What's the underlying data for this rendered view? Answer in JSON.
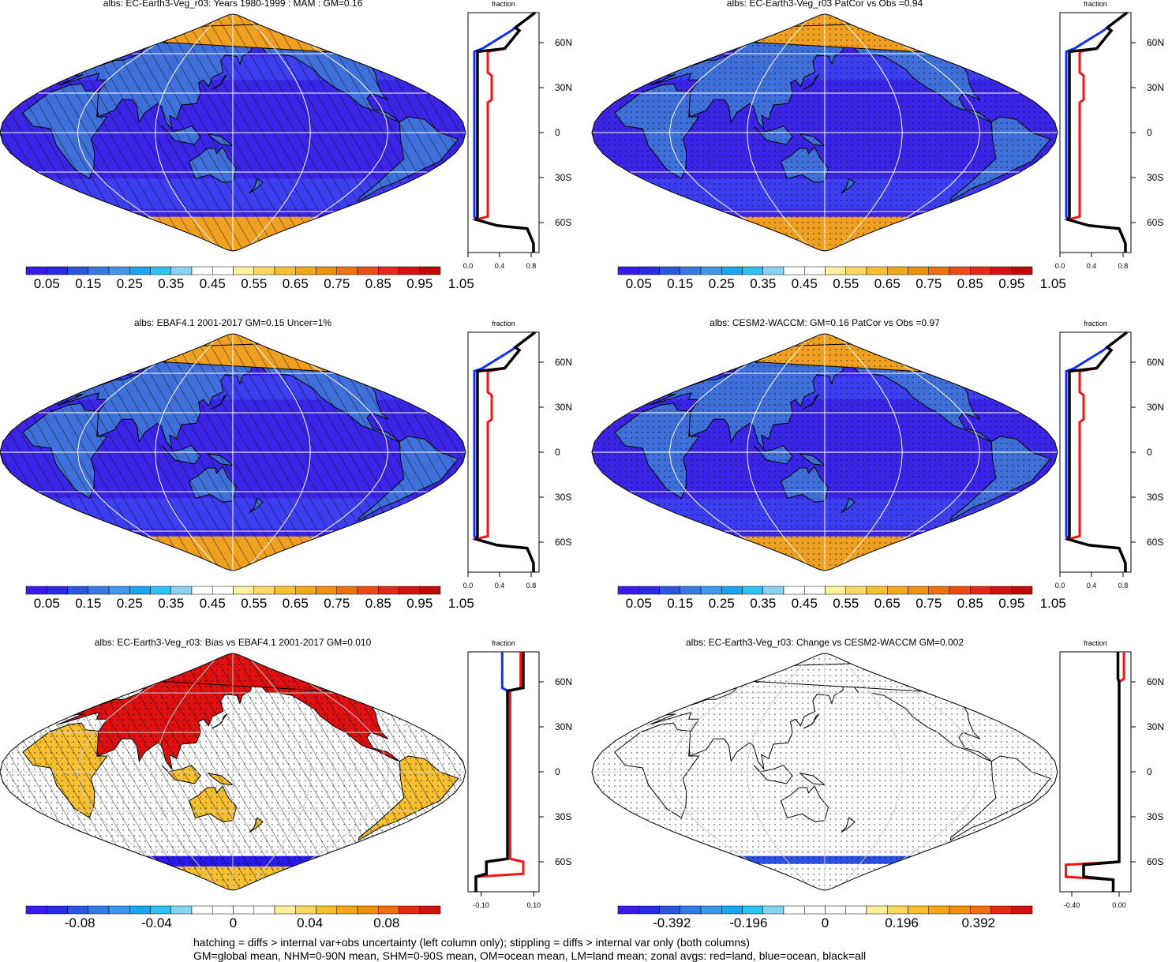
{
  "colors": {
    "ocean": "#3a24e6",
    "ocean_bright": "#2a1af0",
    "land_mid": "#3f6fd8",
    "ice": "#f0a020",
    "land_line": "#000000",
    "grid": "#ffffff",
    "zonal_land": "#ff1010",
    "zonal_ocean": "#1030ff",
    "zonal_all": "#000000"
  },
  "palette_abs": [
    "#3a1aec",
    "#2a2ae6",
    "#2c55e0",
    "#3a78e4",
    "#4096ea",
    "#1aa6ee",
    "#2cc2f2",
    "#8ad2f2",
    "#ffffff",
    "#ffffff",
    "#fff0a0",
    "#fbd860",
    "#f6c030",
    "#f2a818",
    "#f09010",
    "#ee7010",
    "#ec4c10",
    "#e62818",
    "#d41010",
    "#c00808"
  ],
  "palette_diff": [
    "#3a1aec",
    "#2a2ae6",
    "#2c55e0",
    "#3a78e4",
    "#4096ea",
    "#1aa6ee",
    "#2cc2f2",
    "#8ad2f2",
    "#ffffff",
    "#ffffff",
    "#ffffff",
    "#ffffff",
    "#fff0a0",
    "#fbd860",
    "#f6c030",
    "#f2a818",
    "#f09010",
    "#ee7010",
    "#e62818",
    "#d41010"
  ],
  "panels": [
    {
      "id": "p1",
      "title": "albs: EC-Earth3-Veg_r03: Years 1980-1999 : MAM : GM=0.16",
      "mode": "abs",
      "hatch": true,
      "stipple": false,
      "colorbar_labels": [
        "0.05",
        "0.15",
        "0.25",
        "0.35",
        "0.45",
        "0.55",
        "0.65",
        "0.75",
        "0.85",
        "0.95",
        "1.05"
      ],
      "zonal": {
        "header": "fraction",
        "xticks": [
          "0.0",
          "0.4",
          "0.8"
        ],
        "xrange": [
          0,
          0.9
        ],
        "yticks": [
          "60N",
          "30N",
          "0",
          "30S",
          "60S"
        ]
      }
    },
    {
      "id": "p2",
      "title": "albs: EC-Earth3-Veg_r03 PatCor vs Obs =0.94",
      "mode": "abs",
      "hatch": false,
      "stipple": true,
      "colorbar_labels": [
        "0.05",
        "0.15",
        "0.25",
        "0.35",
        "0.45",
        "0.55",
        "0.65",
        "0.75",
        "0.85",
        "0.95",
        "1.05"
      ],
      "zonal": {
        "header": "fraction",
        "xticks": [
          "0.0",
          "0.4",
          "0.8"
        ],
        "xrange": [
          0,
          0.9
        ],
        "yticks": [
          "60N",
          "30N",
          "0",
          "30S",
          "60S"
        ]
      }
    },
    {
      "id": "p3",
      "title": "albs: EBAF4.1 2001-2017 GM=0.15 Uncer=1%",
      "mode": "abs",
      "hatch": true,
      "stipple": false,
      "colorbar_labels": [
        "0.05",
        "0.15",
        "0.25",
        "0.35",
        "0.45",
        "0.55",
        "0.65",
        "0.75",
        "0.85",
        "0.95",
        "1.05"
      ],
      "zonal": {
        "header": "fraction",
        "xticks": [
          "0.0",
          "0.4",
          "0.8"
        ],
        "xrange": [
          0,
          0.9
        ],
        "yticks": [
          "60N",
          "30N",
          "0",
          "30S",
          "60S"
        ]
      }
    },
    {
      "id": "p4",
      "title": "albs: CESM2-WACCM: GM=0.16 PatCor vs Obs =0.97",
      "mode": "abs",
      "hatch": false,
      "stipple": true,
      "colorbar_labels": [
        "0.05",
        "0.15",
        "0.25",
        "0.35",
        "0.45",
        "0.55",
        "0.65",
        "0.75",
        "0.85",
        "0.95",
        "1.05"
      ],
      "zonal": {
        "header": "fraction",
        "xticks": [
          "0.0",
          "0.4",
          "0.8"
        ],
        "xrange": [
          0,
          0.9
        ],
        "yticks": [
          "60N",
          "30N",
          "0",
          "30S",
          "60S"
        ]
      }
    },
    {
      "id": "p5",
      "title": "albs: EC-Earth3-Veg_r03: Bias vs EBAF4.1 2001-2017 GM=0.010",
      "mode": "bias",
      "hatch": true,
      "stipple": true,
      "colorbar_labels": [
        "-0.08",
        "-0.04",
        "0",
        "0.04",
        "0.08"
      ],
      "zonal": {
        "header": "fraction",
        "xticks": [
          "-0.10",
          "0.10"
        ],
        "xrange": [
          -0.15,
          0.12
        ],
        "yticks": [
          "60N",
          "30N",
          "0",
          "30S",
          "60S"
        ]
      }
    },
    {
      "id": "p6",
      "title": "albs: EC-Earth3-Veg_r03: Change vs CESM2-WACCM GM=0.002",
      "mode": "change",
      "hatch": false,
      "stipple": true,
      "colorbar_labels": [
        "-0.392",
        "-0.196",
        "0",
        "0.196",
        "0.392"
      ],
      "zonal": {
        "header": "fraction",
        "xticks": [
          "-0.40",
          "0.00"
        ],
        "xrange": [
          -0.5,
          0.1
        ],
        "yticks": [
          "60N",
          "30N",
          "0",
          "30S",
          "60S"
        ]
      }
    }
  ],
  "footer": {
    "line1": "hatching = diffs > internal var+obs uncertainty (left column only); stippling = diffs > internal var only (both columns)",
    "line2": "GM=global mean, NHM=0-90N mean, SHM=0-90S mean, OM=ocean mean, LM=land mean; zonal avgs: red=land, blue=ocean, black=all"
  }
}
